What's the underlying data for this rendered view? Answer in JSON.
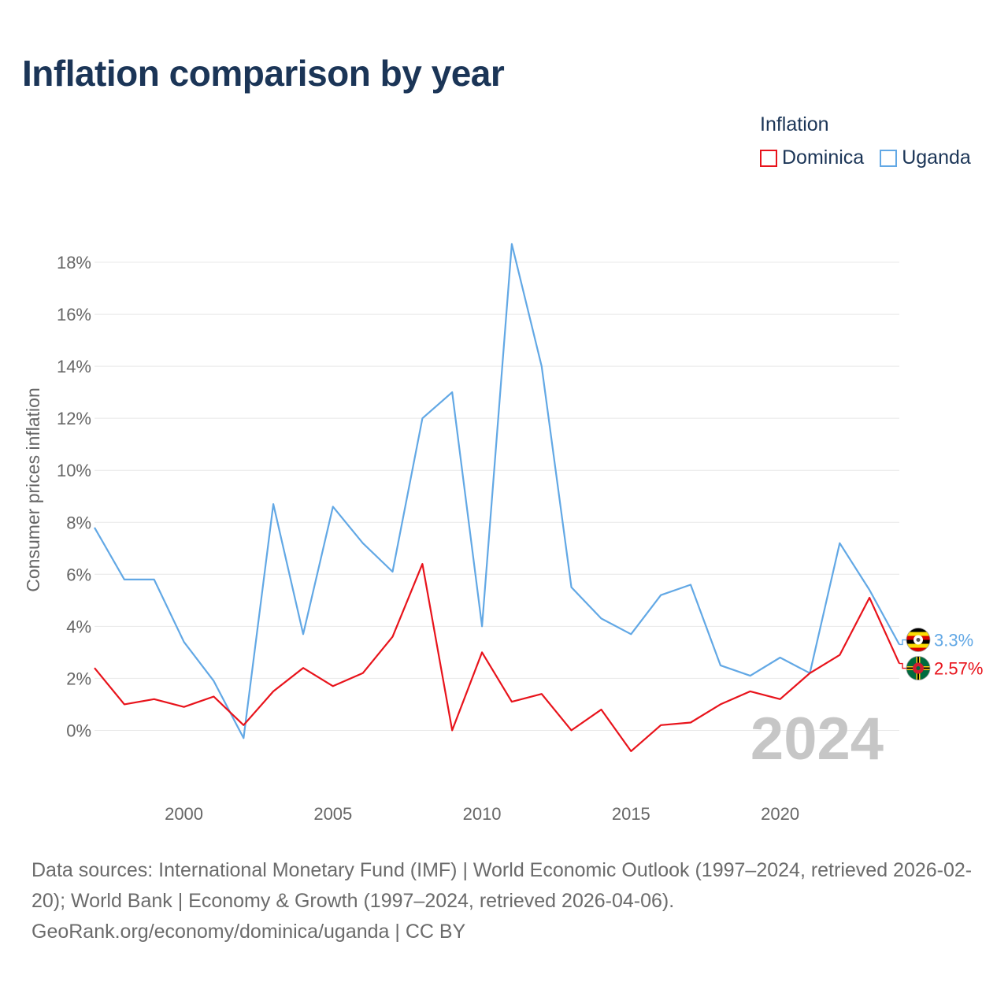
{
  "title": "Inflation comparison by year",
  "legend": {
    "title": "Inflation",
    "items": [
      {
        "label": "Dominica",
        "color": "#e8131b"
      },
      {
        "label": "Uganda",
        "color": "#62a8e5"
      }
    ]
  },
  "chart_data": {
    "type": "line",
    "title": "Inflation comparison by year",
    "xlabel": "",
    "ylabel": "Consumer prices inflation",
    "xlim": [
      1997,
      2024
    ],
    "ylim": [
      -2.5,
      19
    ],
    "yticks": [
      0,
      2,
      4,
      6,
      8,
      10,
      12,
      14,
      16,
      18
    ],
    "ytick_labels": [
      "0%",
      "2%",
      "4%",
      "6%",
      "8%",
      "10%",
      "12%",
      "14%",
      "16%",
      "18%"
    ],
    "xticks": [
      2000,
      2005,
      2010,
      2015,
      2020
    ],
    "xtick_labels": [
      "2000",
      "2005",
      "2010",
      "2015",
      "2020"
    ],
    "grid": true,
    "x": [
      1997,
      1998,
      1999,
      2000,
      2001,
      2002,
      2003,
      2004,
      2005,
      2006,
      2007,
      2008,
      2009,
      2010,
      2011,
      2012,
      2013,
      2014,
      2015,
      2016,
      2017,
      2018,
      2019,
      2020,
      2021,
      2022,
      2023,
      2024
    ],
    "series": [
      {
        "name": "Uganda",
        "color": "#62a8e5",
        "values": [
          7.8,
          5.8,
          5.8,
          3.4,
          1.9,
          -0.3,
          8.7,
          3.7,
          8.6,
          7.2,
          6.1,
          12.0,
          13.0,
          4.0,
          18.7,
          14.0,
          5.5,
          4.3,
          3.7,
          5.2,
          5.6,
          2.5,
          2.1,
          2.8,
          2.2,
          7.2,
          5.4,
          3.3
        ],
        "end_label": "3.3%"
      },
      {
        "name": "Dominica",
        "color": "#e8131b",
        "values": [
          2.4,
          1.0,
          1.2,
          0.9,
          1.3,
          0.2,
          1.5,
          2.4,
          1.7,
          2.2,
          3.6,
          6.4,
          0.0,
          3.0,
          1.1,
          1.4,
          0.0,
          0.8,
          -0.8,
          0.2,
          0.3,
          1.0,
          1.5,
          1.2,
          2.2,
          2.9,
          5.1,
          2.57
        ],
        "end_label": "2.57%"
      }
    ],
    "annotation": "2024"
  },
  "footer": {
    "line1": "Data sources: International Monetary Fund (IMF) | World Economic Outlook (1997–2024, retrieved 2026-02-20); World Bank | Economy & Growth (1997–2024, retrieved 2026-04-06).",
    "line2": "GeoRank.org/economy/dominica/uganda | CC BY"
  }
}
